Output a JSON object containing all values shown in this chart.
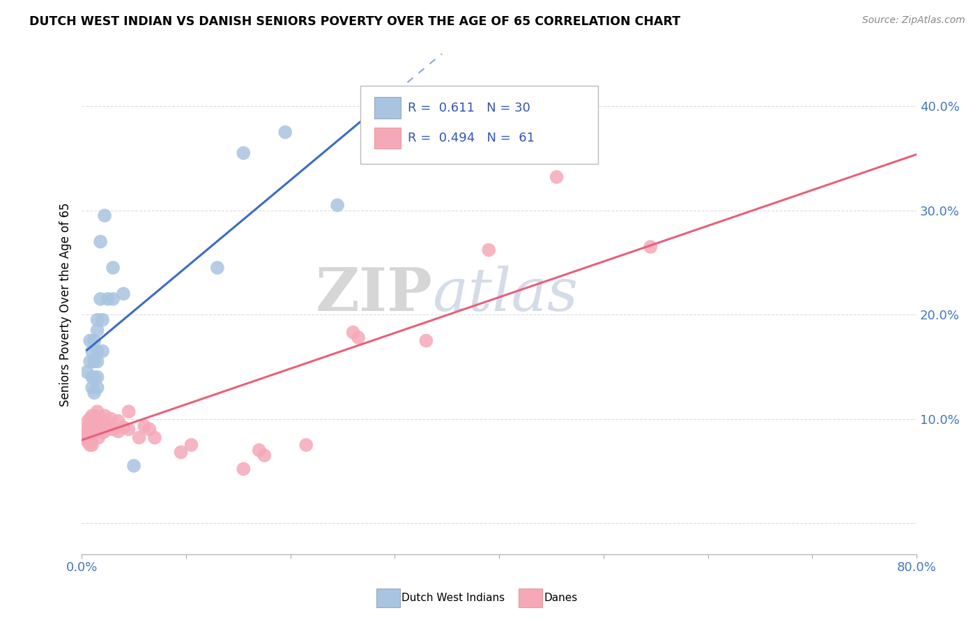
{
  "title": "DUTCH WEST INDIAN VS DANISH SENIORS POVERTY OVER THE AGE OF 65 CORRELATION CHART",
  "source": "Source: ZipAtlas.com",
  "ylabel": "Seniors Poverty Over the Age of 65",
  "xlim": [
    0.0,
    0.8
  ],
  "ylim": [
    -0.03,
    0.45
  ],
  "xticks": [
    0.0,
    0.1,
    0.2,
    0.3,
    0.4,
    0.5,
    0.6,
    0.7,
    0.8
  ],
  "yticks": [
    0.0,
    0.1,
    0.2,
    0.3,
    0.4
  ],
  "blue_R": "0.611",
  "blue_N": "30",
  "pink_R": "0.494",
  "pink_N": "61",
  "blue_color": "#A8C4E0",
  "pink_color": "#F5A8B8",
  "blue_line_color": "#3B6BC4",
  "pink_line_color": "#E8607A",
  "blue_scatter": [
    [
      0.005,
      0.145
    ],
    [
      0.008,
      0.175
    ],
    [
      0.008,
      0.155
    ],
    [
      0.01,
      0.165
    ],
    [
      0.01,
      0.14
    ],
    [
      0.01,
      0.13
    ],
    [
      0.012,
      0.175
    ],
    [
      0.012,
      0.155
    ],
    [
      0.012,
      0.14
    ],
    [
      0.012,
      0.125
    ],
    [
      0.015,
      0.195
    ],
    [
      0.015,
      0.185
    ],
    [
      0.015,
      0.165
    ],
    [
      0.015,
      0.155
    ],
    [
      0.015,
      0.14
    ],
    [
      0.015,
      0.13
    ],
    [
      0.018,
      0.27
    ],
    [
      0.018,
      0.215
    ],
    [
      0.02,
      0.195
    ],
    [
      0.02,
      0.165
    ],
    [
      0.022,
      0.295
    ],
    [
      0.025,
      0.215
    ],
    [
      0.03,
      0.245
    ],
    [
      0.03,
      0.215
    ],
    [
      0.04,
      0.22
    ],
    [
      0.05,
      0.055
    ],
    [
      0.13,
      0.245
    ],
    [
      0.155,
      0.355
    ],
    [
      0.195,
      0.375
    ],
    [
      0.245,
      0.305
    ]
  ],
  "pink_scatter": [
    [
      0.002,
      0.085
    ],
    [
      0.004,
      0.09
    ],
    [
      0.005,
      0.08
    ],
    [
      0.006,
      0.098
    ],
    [
      0.006,
      0.088
    ],
    [
      0.006,
      0.078
    ],
    [
      0.007,
      0.093
    ],
    [
      0.007,
      0.083
    ],
    [
      0.008,
      0.1
    ],
    [
      0.008,
      0.092
    ],
    [
      0.008,
      0.083
    ],
    [
      0.008,
      0.075
    ],
    [
      0.009,
      0.097
    ],
    [
      0.009,
      0.088
    ],
    [
      0.009,
      0.078
    ],
    [
      0.01,
      0.103
    ],
    [
      0.01,
      0.093
    ],
    [
      0.01,
      0.085
    ],
    [
      0.01,
      0.075
    ],
    [
      0.011,
      0.1
    ],
    [
      0.011,
      0.09
    ],
    [
      0.012,
      0.097
    ],
    [
      0.012,
      0.088
    ],
    [
      0.013,
      0.103
    ],
    [
      0.013,
      0.093
    ],
    [
      0.014,
      0.098
    ],
    [
      0.014,
      0.088
    ],
    [
      0.015,
      0.107
    ],
    [
      0.015,
      0.097
    ],
    [
      0.016,
      0.092
    ],
    [
      0.016,
      0.082
    ],
    [
      0.018,
      0.1
    ],
    [
      0.018,
      0.09
    ],
    [
      0.02,
      0.097
    ],
    [
      0.02,
      0.087
    ],
    [
      0.022,
      0.103
    ],
    [
      0.022,
      0.088
    ],
    [
      0.025,
      0.095
    ],
    [
      0.028,
      0.1
    ],
    [
      0.03,
      0.09
    ],
    [
      0.035,
      0.098
    ],
    [
      0.035,
      0.088
    ],
    [
      0.04,
      0.092
    ],
    [
      0.045,
      0.107
    ],
    [
      0.045,
      0.09
    ],
    [
      0.055,
      0.082
    ],
    [
      0.06,
      0.093
    ],
    [
      0.065,
      0.09
    ],
    [
      0.07,
      0.082
    ],
    [
      0.095,
      0.068
    ],
    [
      0.105,
      0.075
    ],
    [
      0.155,
      0.052
    ],
    [
      0.17,
      0.07
    ],
    [
      0.175,
      0.065
    ],
    [
      0.215,
      0.075
    ],
    [
      0.26,
      0.183
    ],
    [
      0.265,
      0.178
    ],
    [
      0.33,
      0.175
    ],
    [
      0.39,
      0.262
    ],
    [
      0.455,
      0.332
    ],
    [
      0.545,
      0.265
    ]
  ],
  "watermark_zip": "ZIP",
  "watermark_atlas": "atlas",
  "background_color": "#FFFFFF",
  "grid_color": "#DDDDDD"
}
